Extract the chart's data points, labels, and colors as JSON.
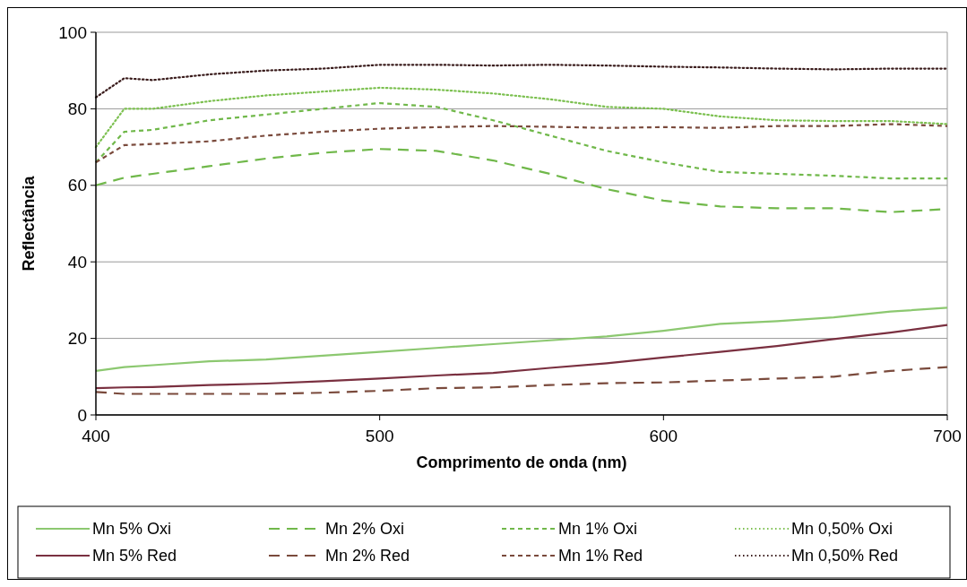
{
  "chart_data": {
    "type": "line",
    "xlabel": "Comprimento de onda (nm)",
    "ylabel": "Reflectância",
    "x": [
      400,
      410,
      420,
      440,
      460,
      480,
      500,
      520,
      540,
      560,
      580,
      600,
      620,
      640,
      660,
      680,
      700
    ],
    "xlim": [
      400,
      700
    ],
    "xticks": [
      400,
      500,
      600,
      700
    ],
    "ylim": [
      0,
      100
    ],
    "yticks": [
      0,
      20,
      40,
      60,
      80,
      100
    ],
    "grid": "y",
    "legend": "bottom",
    "series": [
      {
        "name": "Mn 5% Oxi",
        "color": "#8cc870",
        "line_style": "solid",
        "values": [
          11.5,
          12.5,
          13,
          14,
          14.5,
          15.5,
          16.5,
          17.5,
          18.5,
          19.5,
          20.5,
          22,
          23.8,
          24.5,
          25.5,
          27,
          28
        ]
      },
      {
        "name": "Mn 2% Oxi",
        "color": "#70b84a",
        "line_style": "dashed",
        "values": [
          60,
          62,
          63,
          65,
          67,
          68.5,
          69.5,
          69,
          66.5,
          63,
          59,
          56,
          54.5,
          54,
          54,
          53,
          53.8
        ]
      },
      {
        "name": "Mn 1% Oxi",
        "color": "#70b84a",
        "line_style": "shortdash",
        "values": [
          66,
          74,
          74.5,
          77,
          78.5,
          80,
          81.5,
          80.5,
          77,
          73,
          69,
          66,
          63.5,
          63,
          62.5,
          61.8,
          61.8
        ]
      },
      {
        "name": "Mn 0,50% Oxi",
        "color": "#7cc050",
        "line_style": "dotted",
        "values": [
          70,
          80,
          80,
          82,
          83.5,
          84.5,
          85.5,
          85,
          84,
          82.5,
          80.5,
          80,
          78,
          77,
          76.8,
          76.8,
          76
        ]
      },
      {
        "name": "Mn 5% Red",
        "color": "#7a3040",
        "line_style": "solid",
        "values": [
          7,
          7.2,
          7.3,
          7.8,
          8.2,
          8.8,
          9.5,
          10.3,
          11,
          12.3,
          13.5,
          15,
          16.5,
          18,
          19.8,
          21.5,
          23.5
        ]
      },
      {
        "name": "Mn 2% Red",
        "color": "#7a4a3c",
        "line_style": "dashed",
        "values": [
          6,
          5.5,
          5.5,
          5.5,
          5.5,
          5.8,
          6.3,
          7,
          7.2,
          7.8,
          8.3,
          8.5,
          9,
          9.5,
          10,
          11.5,
          12.5
        ]
      },
      {
        "name": "Mn 1% Red",
        "color": "#7a4a3c",
        "line_style": "shortdash",
        "values": [
          66,
          70.5,
          70.8,
          71.5,
          73,
          74,
          74.8,
          75.2,
          75.5,
          75.3,
          75,
          75.2,
          75,
          75.5,
          75.5,
          76,
          75.5
        ]
      },
      {
        "name": "Mn 0,50% Red",
        "color": "#3a1c1c",
        "line_style": "dotted",
        "values": [
          83,
          88,
          87.5,
          89,
          90,
          90.5,
          91.5,
          91.5,
          91.3,
          91.5,
          91.3,
          91,
          90.8,
          90.5,
          90.3,
          90.5,
          90.5
        ]
      }
    ]
  }
}
